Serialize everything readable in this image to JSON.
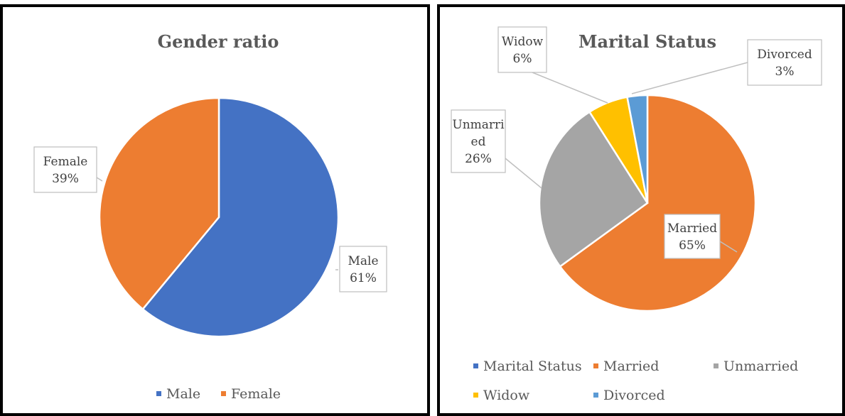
{
  "colors": {
    "blue": "#4472C4",
    "orange": "#ED7D31",
    "gray": "#A5A5A5",
    "gold": "#FFC000",
    "lightblue": "#5B9BD5"
  },
  "chart_data": [
    {
      "type": "pie",
      "title": "Gender ratio",
      "slices": [
        {
          "label": "Male",
          "value": 61,
          "pct_text": "61%",
          "color": "#4472C4"
        },
        {
          "label": "Female",
          "value": 39,
          "pct_text": "39%",
          "color": "#ED7D31"
        }
      ],
      "legend": [
        "Male",
        "Female"
      ],
      "legend_position": "bottom"
    },
    {
      "type": "pie",
      "title": "Marital Status",
      "slices": [
        {
          "label": "Married",
          "value": 65,
          "pct_text": "65%",
          "color": "#ED7D31"
        },
        {
          "label": "Unmarried",
          "value": 26,
          "pct_text": "26%",
          "color": "#A5A5A5",
          "label_lines": [
            "Unmarri",
            "ed"
          ]
        },
        {
          "label": "Widow",
          "value": 6,
          "pct_text": "6%",
          "color": "#FFC000"
        },
        {
          "label": "Divorced",
          "value": 3,
          "pct_text": "3%",
          "color": "#5B9BD5"
        }
      ],
      "legend": [
        {
          "label": "Marital Status",
          "color": "#4472C4"
        },
        {
          "label": "Married",
          "color": "#ED7D31"
        },
        {
          "label": "Unmarried",
          "color": "#A5A5A5"
        },
        {
          "label": "Widow",
          "color": "#FFC000"
        },
        {
          "label": "Divorced",
          "color": "#5B9BD5"
        }
      ],
      "legend_position": "bottom"
    }
  ]
}
